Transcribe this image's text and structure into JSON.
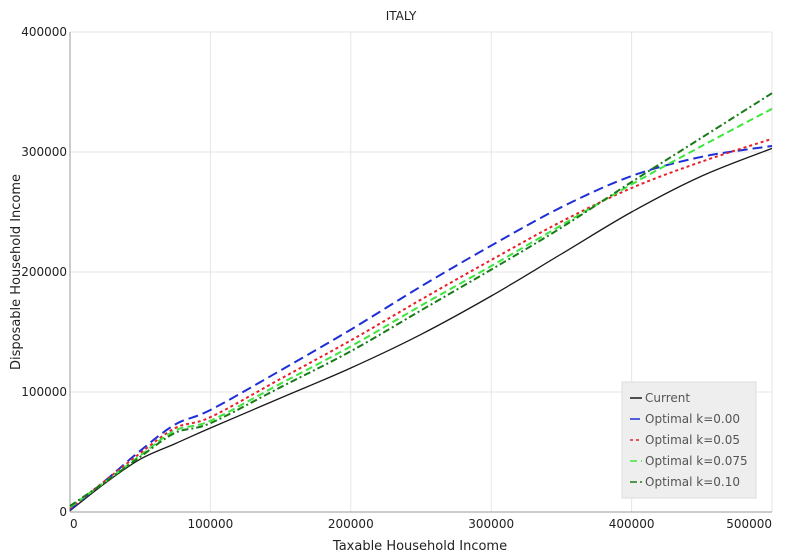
{
  "chart_data": {
    "type": "line",
    "title": "ITALY",
    "xlabel": "Taxable Household Income",
    "ylabel": "Disposable Household Income",
    "xlim": [
      0,
      500000
    ],
    "ylim": [
      0,
      400000
    ],
    "xticks": [
      0,
      100000,
      200000,
      300000,
      400000,
      500000
    ],
    "yticks": [
      0,
      100000,
      200000,
      300000,
      400000
    ],
    "xtick_labels": [
      "0",
      "100000",
      "200000",
      "300000",
      "400000",
      "500000"
    ],
    "ytick_labels": [
      "0",
      "100000",
      "200000",
      "300000",
      "400000"
    ],
    "grid": true,
    "legend_position": "bottom-right",
    "x": [
      0,
      25000,
      50000,
      75000,
      100000,
      150000,
      200000,
      250000,
      300000,
      350000,
      400000,
      450000,
      500000
    ],
    "series": [
      {
        "name": "Current",
        "color": "#1a1a1a",
        "dash": "solid",
        "values": [
          1000,
          24000,
          44000,
          57000,
          70000,
          95000,
          120000,
          148000,
          180000,
          215000,
          250000,
          280000,
          303000
        ]
      },
      {
        "name": "Optimal k=0.00",
        "color": "#1f2fd6",
        "dash": "long-dash",
        "values": [
          2000,
          26000,
          51000,
          73000,
          85000,
          118000,
          152000,
          188000,
          222000,
          254000,
          280000,
          296000,
          305000
        ]
      },
      {
        "name": "Optimal k=0.05",
        "color": "#e8202a",
        "dash": "dotted",
        "values": [
          3000,
          26000,
          49000,
          70000,
          79000,
          111000,
          143000,
          177000,
          210000,
          242000,
          270000,
          292000,
          311000
        ]
      },
      {
        "name": "Optimal k=0.075",
        "color": "#3ee63e",
        "dash": "dash",
        "values": [
          4000,
          25000,
          47000,
          68000,
          76000,
          107000,
          138000,
          172000,
          205000,
          239000,
          273000,
          305000,
          336000
        ]
      },
      {
        "name": "Optimal k=0.10",
        "color": "#1a7a1a",
        "dash": "dash-dot",
        "values": [
          5000,
          25000,
          46000,
          66000,
          74000,
          104000,
          134000,
          168000,
          202000,
          237000,
          275000,
          312000,
          349000
        ]
      }
    ]
  }
}
